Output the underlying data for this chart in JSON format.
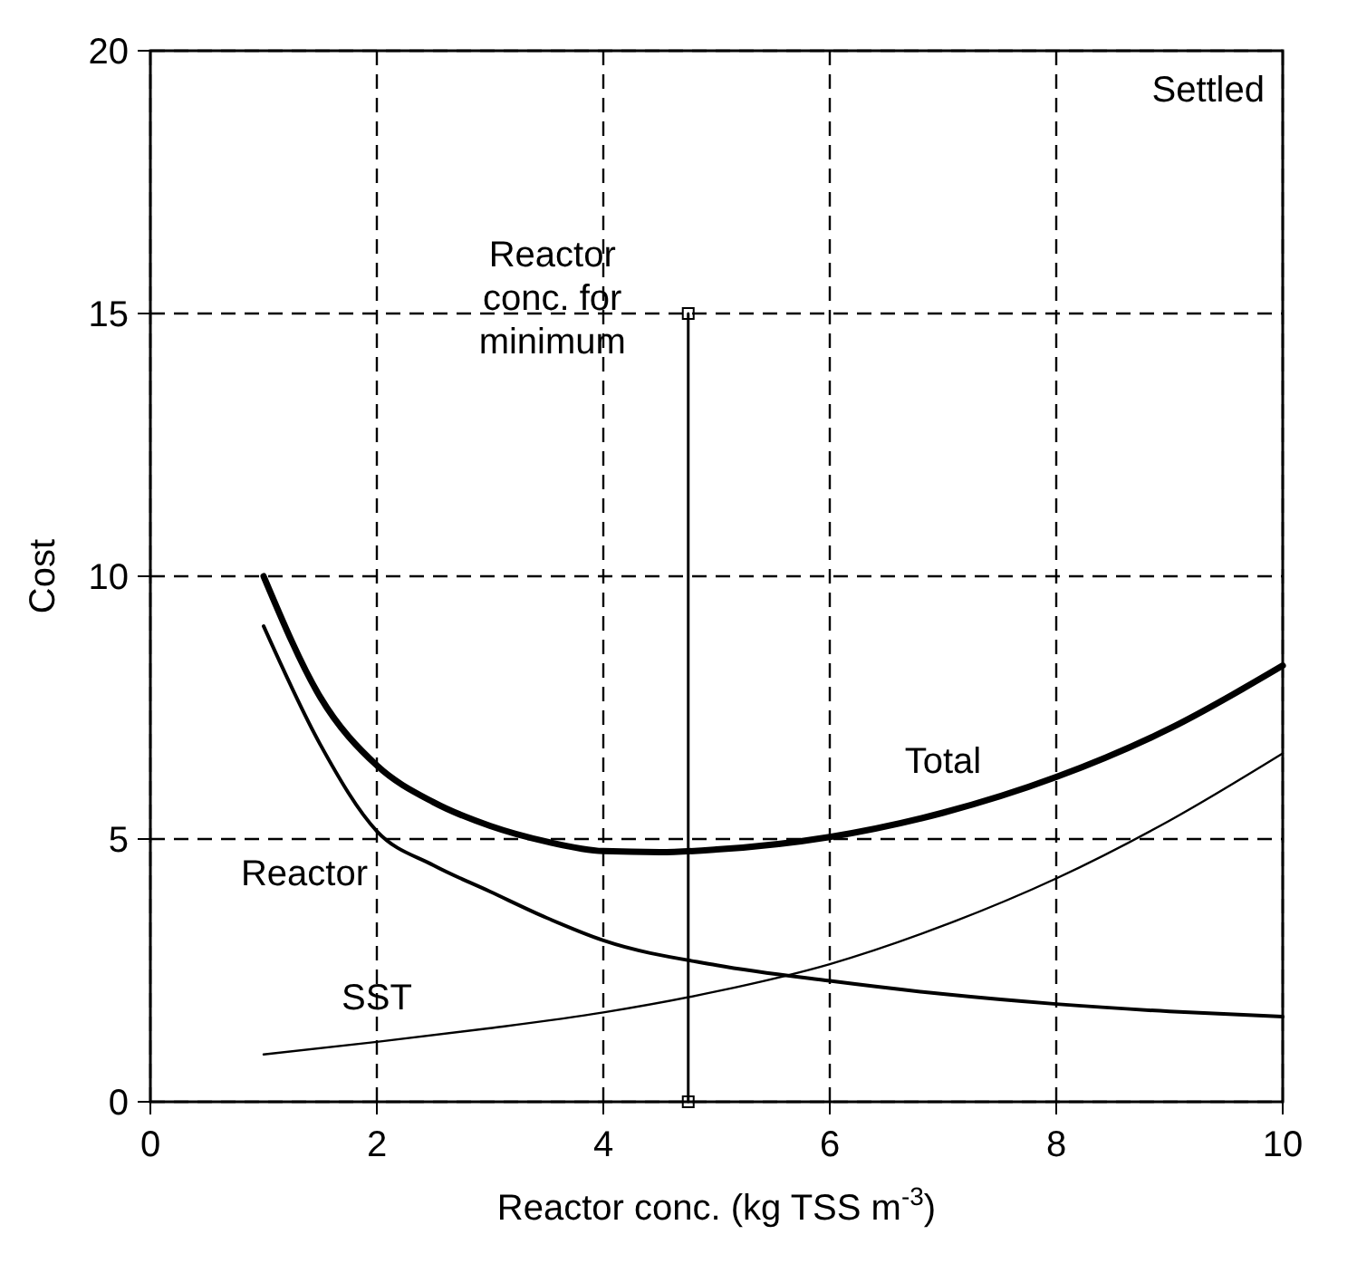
{
  "chart_data": {
    "type": "line",
    "xlabel": "Reactor conc. (kg TSS m$^{-3}$)",
    "ylabel": "Cost",
    "xlim": [
      0,
      10
    ],
    "ylim": [
      0,
      20
    ],
    "xticks": [
      0,
      2,
      4,
      6,
      8,
      10
    ],
    "yticks": [
      0,
      5,
      10,
      15,
      20
    ],
    "grid": true,
    "line_style": "solid",
    "marker": "none",
    "annotations": [
      "Settled",
      {
        "text": "Reactor conc. for minimum",
        "x": 4.75,
        "y": 15
      }
    ],
    "series": [
      {
        "name": "Total",
        "color": "#000000",
        "x": [
          1,
          1.5,
          2,
          2.5,
          3,
          3.5,
          4,
          4.5,
          5,
          6,
          7,
          8,
          9,
          10
        ],
        "values": [
          10,
          7.7,
          6.4,
          5.7,
          5.25,
          4.95,
          4.77,
          4.75,
          4.8,
          5.04,
          5.5,
          6.18,
          7.1,
          8.3
        ]
      },
      {
        "name": "Reactor",
        "color": "#000000",
        "x": [
          1,
          1.5,
          2,
          2.5,
          3,
          3.5,
          4,
          5,
          6,
          7,
          8,
          9,
          10
        ],
        "values": [
          9.05,
          6.8,
          5.15,
          4.5,
          4.0,
          3.5,
          3.07,
          2.6,
          2.3,
          2.05,
          1.86,
          1.72,
          1.62
        ]
      },
      {
        "name": "SST",
        "color": "#000000",
        "x": [
          1,
          2,
          3,
          4,
          5,
          6,
          7,
          8,
          9,
          10
        ],
        "values": [
          0.9,
          1.14,
          1.4,
          1.7,
          2.1,
          2.62,
          3.35,
          4.25,
          5.35,
          6.63
        ]
      },
      {
        "color": "#000000",
        "x": [
          4.75,
          4.75
        ],
        "values": [
          0,
          15
        ],
        "marker": "square"
      }
    ]
  }
}
